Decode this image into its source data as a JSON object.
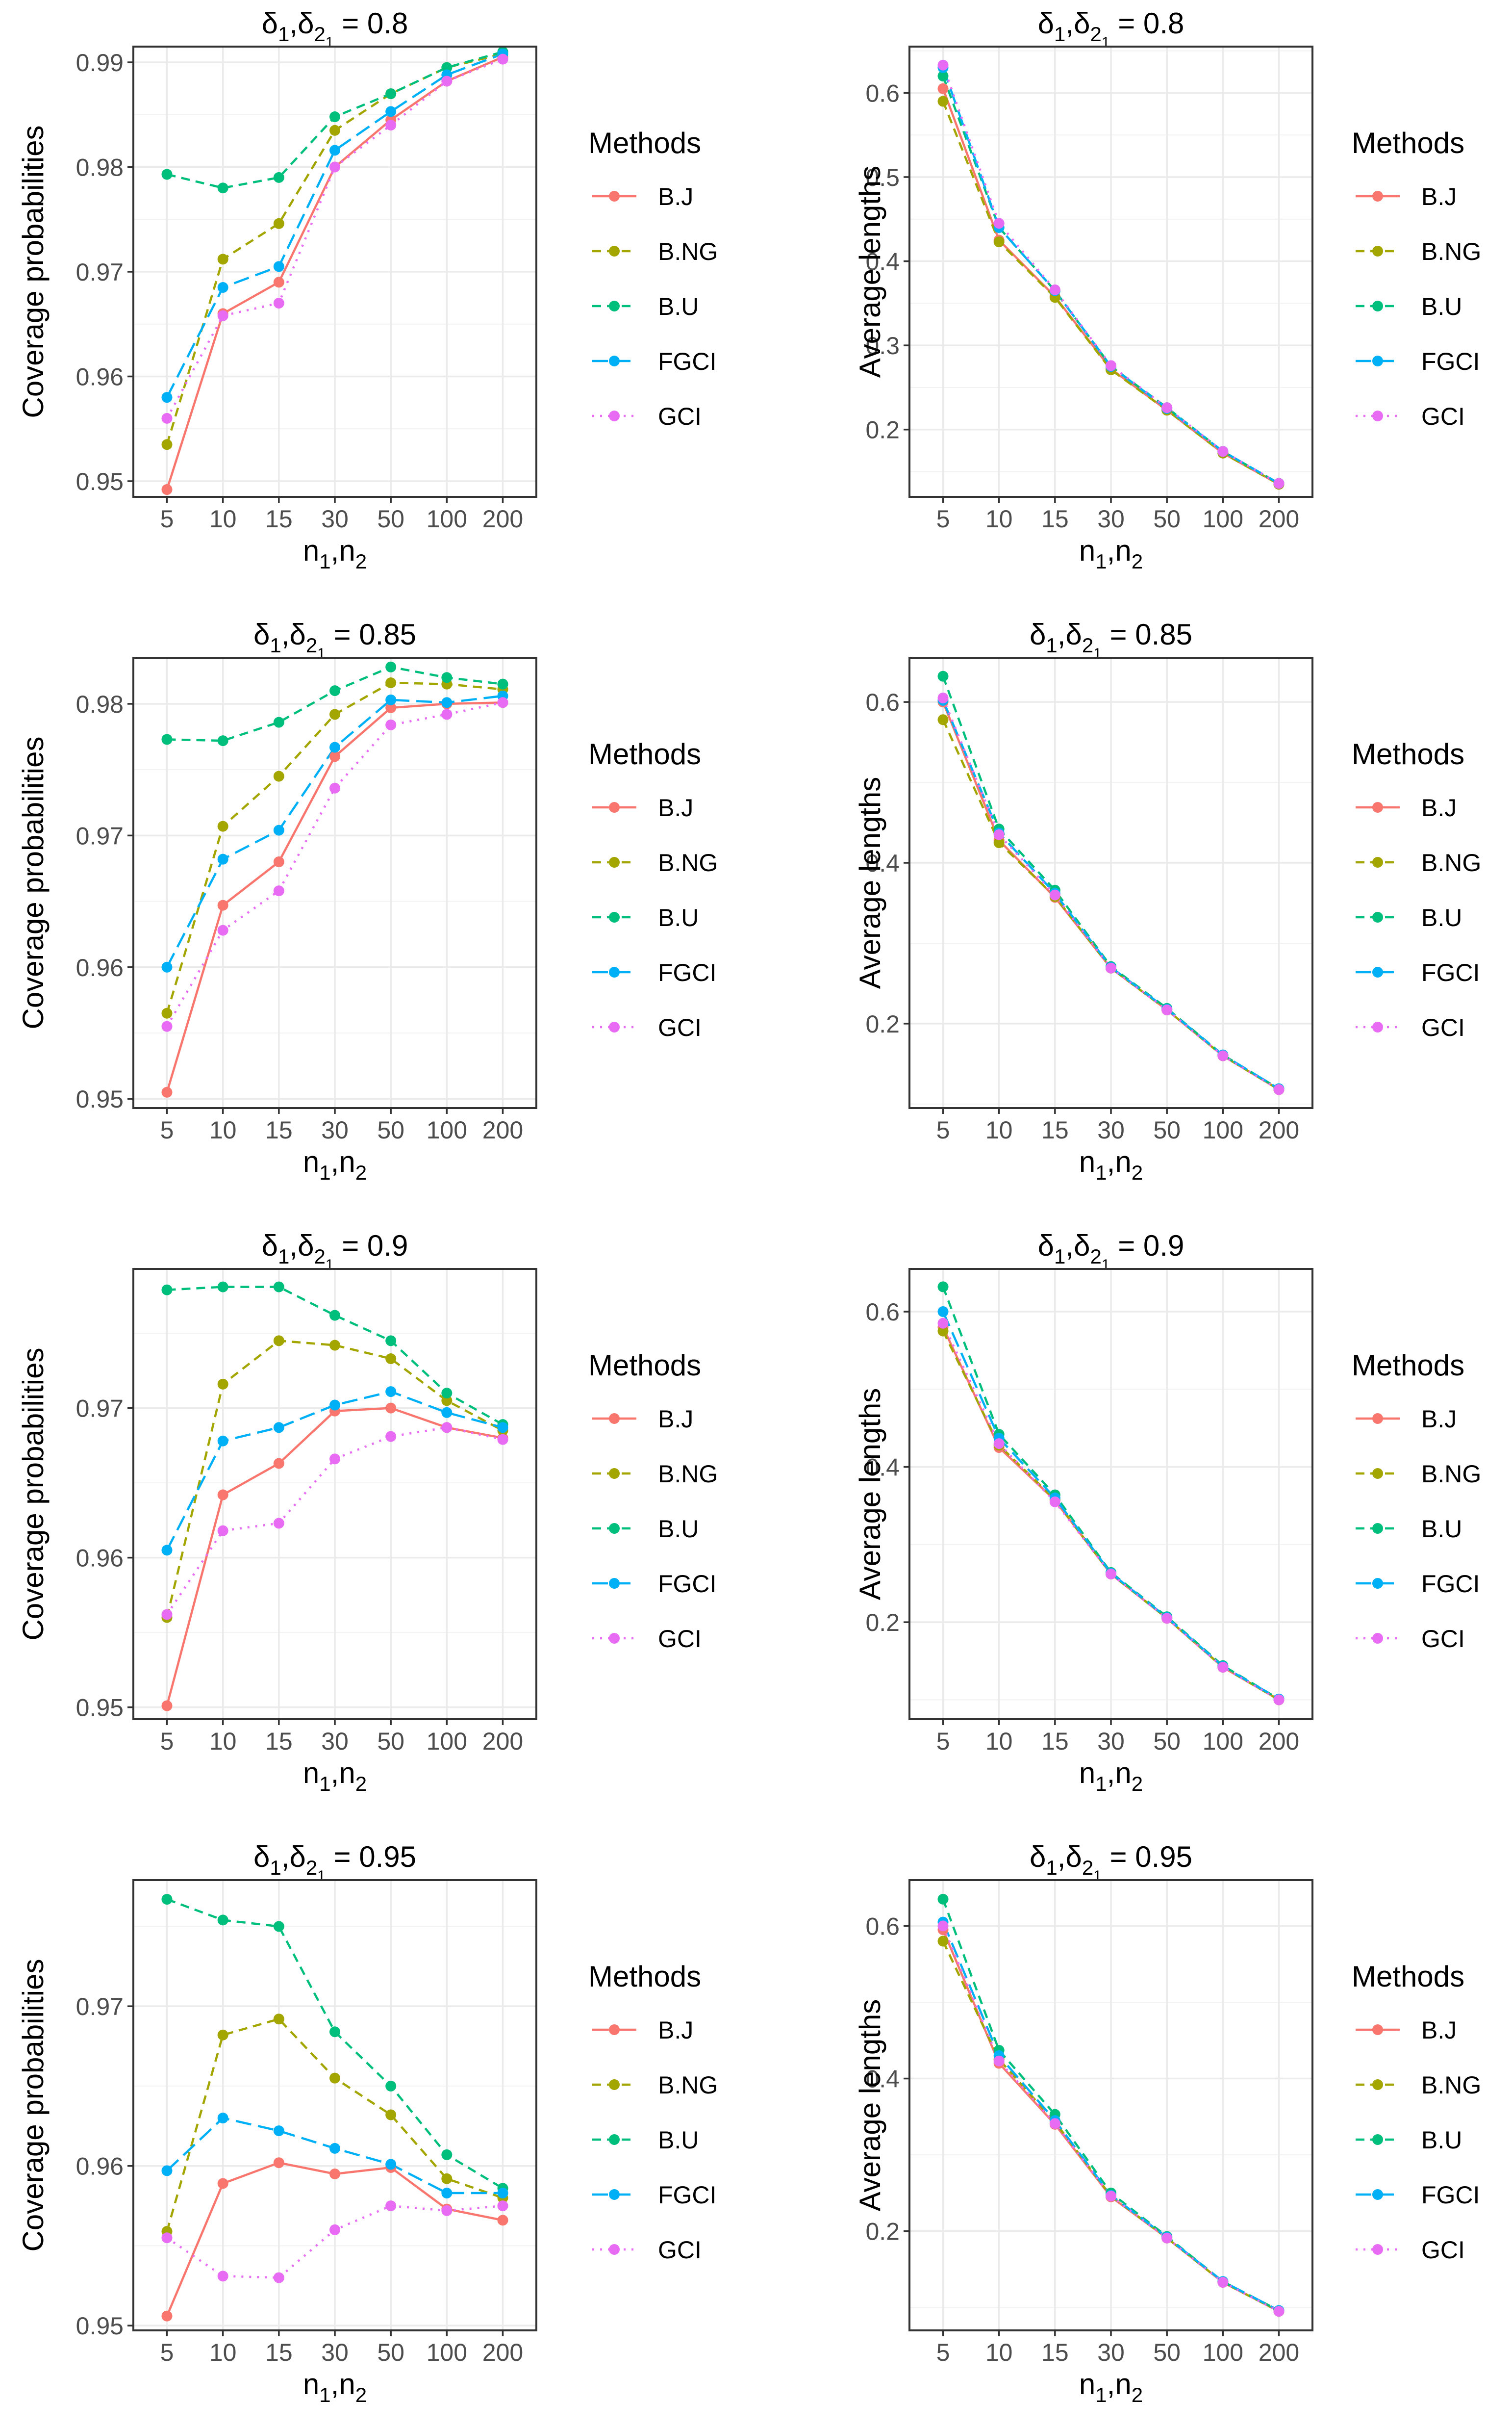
{
  "chart_data": [
    {
      "type": "line",
      "title": {
        "prefix": "δ",
        "s1": "1",
        "s2": "2",
        "s3": "1",
        "value": "0.8"
      },
      "xlabel": {
        "base": "n",
        "s1": "1",
        "s2": "2"
      },
      "ylabel": "Coverage probabilities",
      "x": [
        "5",
        "10",
        "15",
        "30",
        "50",
        "100",
        "200"
      ],
      "ylim": [
        0.9485,
        0.9915
      ],
      "yticks": [
        0.95,
        0.96,
        0.97,
        0.98,
        0.99
      ],
      "ytick_labels": [
        "0.95",
        "0.96",
        "0.97",
        "0.98",
        "0.99"
      ],
      "legend_title": "Methods",
      "series": [
        {
          "name": "B.J",
          "values": [
            0.9492,
            0.966,
            0.969,
            0.98,
            0.9845,
            0.9882,
            0.9905
          ]
        },
        {
          "name": "B.NG",
          "values": [
            0.9535,
            0.9712,
            0.9746,
            0.9835,
            0.987,
            0.9895,
            0.9908
          ]
        },
        {
          "name": "B.U",
          "values": [
            0.9793,
            0.978,
            0.979,
            0.9848,
            0.987,
            0.9895,
            0.991
          ]
        },
        {
          "name": "FGCI",
          "values": [
            0.958,
            0.9685,
            0.9705,
            0.9816,
            0.9853,
            0.9888,
            0.9908
          ]
        },
        {
          "name": "GCI",
          "values": [
            0.956,
            0.9658,
            0.967,
            0.98,
            0.984,
            0.9882,
            0.9903
          ]
        }
      ]
    },
    {
      "type": "line",
      "title": {
        "prefix": "δ",
        "s1": "1",
        "s2": "2",
        "s3": "1",
        "value": "0.8"
      },
      "xlabel": {
        "base": "n",
        "s1": "1",
        "s2": "2"
      },
      "ylabel": "Average lengths",
      "x": [
        "5",
        "10",
        "15",
        "30",
        "50",
        "100",
        "200"
      ],
      "ylim": [
        0.12,
        0.655
      ],
      "yticks": [
        0.2,
        0.3,
        0.4,
        0.5,
        0.6
      ],
      "ytick_labels": [
        "0.2",
        "0.3",
        "0.4",
        "0.5",
        "0.6"
      ],
      "legend_title": "Methods",
      "series": [
        {
          "name": "B.J",
          "values": [
            0.605,
            0.425,
            0.358,
            0.272,
            0.223,
            0.172,
            0.135
          ]
        },
        {
          "name": "B.NG",
          "values": [
            0.59,
            0.423,
            0.357,
            0.271,
            0.223,
            0.172,
            0.135
          ]
        },
        {
          "name": "B.U",
          "values": [
            0.62,
            0.44,
            0.365,
            0.275,
            0.226,
            0.174,
            0.136
          ]
        },
        {
          "name": "FGCI",
          "values": [
            0.63,
            0.44,
            0.365,
            0.275,
            0.225,
            0.174,
            0.136
          ]
        },
        {
          "name": "GCI",
          "values": [
            0.633,
            0.445,
            0.366,
            0.276,
            0.226,
            0.174,
            0.136
          ]
        }
      ]
    },
    {
      "type": "line",
      "title": {
        "prefix": "δ",
        "s1": "1",
        "s2": "2",
        "s3": "1",
        "value": "0.85"
      },
      "xlabel": {
        "base": "n",
        "s1": "1",
        "s2": "2"
      },
      "ylabel": "Coverage probabilities",
      "x": [
        "5",
        "10",
        "15",
        "30",
        "50",
        "100",
        "200"
      ],
      "ylim": [
        0.9493,
        0.9835
      ],
      "yticks": [
        0.95,
        0.96,
        0.97,
        0.98
      ],
      "ytick_labels": [
        "0.95",
        "0.96",
        "0.97",
        "0.98"
      ],
      "legend_title": "Methods",
      "series": [
        {
          "name": "B.J",
          "values": [
            0.9505,
            0.9647,
            0.968,
            0.976,
            0.9797,
            0.98,
            0.9801
          ]
        },
        {
          "name": "B.NG",
          "values": [
            0.9565,
            0.9707,
            0.9745,
            0.9792,
            0.9816,
            0.9815,
            0.9811
          ]
        },
        {
          "name": "B.U",
          "values": [
            0.9773,
            0.9772,
            0.9786,
            0.981,
            0.9828,
            0.982,
            0.9815
          ]
        },
        {
          "name": "FGCI",
          "values": [
            0.96,
            0.9682,
            0.9704,
            0.9767,
            0.9803,
            0.9801,
            0.9806
          ]
        },
        {
          "name": "GCI",
          "values": [
            0.9555,
            0.9628,
            0.9658,
            0.9736,
            0.9784,
            0.9792,
            0.9801
          ]
        }
      ]
    },
    {
      "type": "line",
      "title": {
        "prefix": "δ",
        "s1": "1",
        "s2": "2",
        "s3": "1",
        "value": "0.85"
      },
      "xlabel": {
        "base": "n",
        "s1": "1",
        "s2": "2"
      },
      "ylabel": "Average lengths",
      "x": [
        "5",
        "10",
        "15",
        "30",
        "50",
        "100",
        "200"
      ],
      "ylim": [
        0.095,
        0.655
      ],
      "yticks": [
        0.2,
        0.4,
        0.6
      ],
      "ytick_labels": [
        "0.2",
        "0.4",
        "0.6"
      ],
      "legend_title": "Methods",
      "series": [
        {
          "name": "B.J",
          "values": [
            0.6,
            0.428,
            0.357,
            0.269,
            0.217,
            0.16,
            0.118
          ]
        },
        {
          "name": "B.NG",
          "values": [
            0.578,
            0.425,
            0.358,
            0.269,
            0.217,
            0.16,
            0.118
          ]
        },
        {
          "name": "B.U",
          "values": [
            0.632,
            0.442,
            0.366,
            0.271,
            0.219,
            0.161,
            0.119
          ]
        },
        {
          "name": "FGCI",
          "values": [
            0.602,
            0.437,
            0.362,
            0.27,
            0.218,
            0.161,
            0.119
          ]
        },
        {
          "name": "GCI",
          "values": [
            0.605,
            0.435,
            0.36,
            0.269,
            0.217,
            0.16,
            0.118
          ]
        }
      ]
    },
    {
      "type": "line",
      "title": {
        "prefix": "δ",
        "s1": "1",
        "s2": "2",
        "s3": "1",
        "value": "0.9"
      },
      "xlabel": {
        "base": "n",
        "s1": "1",
        "s2": "2"
      },
      "ylabel": "Coverage probabilities",
      "x": [
        "5",
        "10",
        "15",
        "30",
        "50",
        "100",
        "200"
      ],
      "ylim": [
        0.9492,
        0.9793
      ],
      "yticks": [
        0.95,
        0.96,
        0.97
      ],
      "ytick_labels": [
        "0.95",
        "0.96",
        "0.97"
      ],
      "legend_title": "Methods",
      "series": [
        {
          "name": "B.J",
          "values": [
            0.9501,
            0.9642,
            0.9663,
            0.9698,
            0.97,
            0.9687,
            0.968
          ]
        },
        {
          "name": "B.NG",
          "values": [
            0.956,
            0.9716,
            0.9745,
            0.9742,
            0.9733,
            0.9705,
            0.9685
          ]
        },
        {
          "name": "B.U",
          "values": [
            0.9779,
            0.9781,
            0.9781,
            0.9762,
            0.9745,
            0.971,
            0.9689
          ]
        },
        {
          "name": "FGCI",
          "values": [
            0.9605,
            0.9678,
            0.9687,
            0.9702,
            0.9711,
            0.9697,
            0.9687
          ]
        },
        {
          "name": "GCI",
          "values": [
            0.9562,
            0.9618,
            0.9623,
            0.9666,
            0.9681,
            0.9687,
            0.9679
          ]
        }
      ]
    },
    {
      "type": "line",
      "title": {
        "prefix": "δ",
        "s1": "1",
        "s2": "2",
        "s3": "1",
        "value": "0.9"
      },
      "xlabel": {
        "base": "n",
        "s1": "1",
        "s2": "2"
      },
      "ylabel": "Average lengths",
      "x": [
        "5",
        "10",
        "15",
        "30",
        "50",
        "100",
        "200"
      ],
      "ylim": [
        0.075,
        0.655
      ],
      "yticks": [
        0.2,
        0.4,
        0.6
      ],
      "ytick_labels": [
        "0.2",
        "0.4",
        "0.6"
      ],
      "legend_title": "Methods",
      "series": [
        {
          "name": "B.J",
          "values": [
            0.58,
            0.425,
            0.357,
            0.262,
            0.205,
            0.142,
            0.1
          ]
        },
        {
          "name": "B.NG",
          "values": [
            0.575,
            0.428,
            0.358,
            0.262,
            0.205,
            0.142,
            0.1
          ]
        },
        {
          "name": "B.U",
          "values": [
            0.632,
            0.442,
            0.364,
            0.264,
            0.207,
            0.144,
            0.101
          ]
        },
        {
          "name": "FGCI",
          "values": [
            0.6,
            0.437,
            0.36,
            0.263,
            0.206,
            0.143,
            0.101
          ]
        },
        {
          "name": "GCI",
          "values": [
            0.585,
            0.43,
            0.355,
            0.262,
            0.205,
            0.142,
            0.1
          ]
        }
      ]
    },
    {
      "type": "line",
      "title": {
        "prefix": "δ",
        "s1": "1",
        "s2": "2",
        "s3": "1",
        "value": "0.95"
      },
      "xlabel": {
        "base": "n",
        "s1": "1",
        "s2": "2"
      },
      "ylabel": "Coverage probabilities",
      "x": [
        "5",
        "10",
        "15",
        "30",
        "50",
        "100",
        "200"
      ],
      "ylim": [
        0.9497,
        0.9779
      ],
      "yticks": [
        0.95,
        0.96,
        0.97
      ],
      "ytick_labels": [
        "0.95",
        "0.96",
        "0.97"
      ],
      "legend_title": "Methods",
      "series": [
        {
          "name": "B.J",
          "values": [
            0.9506,
            0.9589,
            0.9602,
            0.9595,
            0.9599,
            0.9573,
            0.9566
          ]
        },
        {
          "name": "B.NG",
          "values": [
            0.9559,
            0.9682,
            0.9692,
            0.9655,
            0.9632,
            0.9592,
            0.958
          ]
        },
        {
          "name": "B.U",
          "values": [
            0.9767,
            0.9754,
            0.975,
            0.9684,
            0.965,
            0.9607,
            0.9586
          ]
        },
        {
          "name": "FGCI",
          "values": [
            0.9597,
            0.963,
            0.9622,
            0.9611,
            0.9601,
            0.9583,
            0.9583
          ]
        },
        {
          "name": "GCI",
          "values": [
            0.9555,
            0.9531,
            0.953,
            0.956,
            0.9575,
            0.9572,
            0.9575
          ]
        }
      ]
    },
    {
      "type": "line",
      "title": {
        "prefix": "δ",
        "s1": "1",
        "s2": "2",
        "s3": "1",
        "value": "0.95"
      },
      "xlabel": {
        "base": "n",
        "s1": "1",
        "s2": "2"
      },
      "ylabel": "Average lengths",
      "x": [
        "5",
        "10",
        "15",
        "30",
        "50",
        "100",
        "200"
      ],
      "ylim": [
        0.07,
        0.66
      ],
      "yticks": [
        0.2,
        0.4,
        0.6
      ],
      "ytick_labels": [
        "0.2",
        "0.4",
        "0.6"
      ],
      "legend_title": "Methods",
      "series": [
        {
          "name": "B.J",
          "values": [
            0.595,
            0.42,
            0.34,
            0.245,
            0.191,
            0.133,
            0.095
          ]
        },
        {
          "name": "B.NG",
          "values": [
            0.58,
            0.425,
            0.343,
            0.246,
            0.191,
            0.133,
            0.095
          ]
        },
        {
          "name": "B.U",
          "values": [
            0.635,
            0.437,
            0.353,
            0.25,
            0.193,
            0.134,
            0.096
          ]
        },
        {
          "name": "FGCI",
          "values": [
            0.605,
            0.43,
            0.345,
            0.247,
            0.192,
            0.134,
            0.096
          ]
        },
        {
          "name": "GCI",
          "values": [
            0.6,
            0.423,
            0.341,
            0.246,
            0.191,
            0.133,
            0.095
          ]
        }
      ]
    }
  ],
  "colors": {
    "B.J": "#F8766D",
    "B.NG": "#A3A500",
    "B.U": "#00BF7D",
    "FGCI": "#00B0F6",
    "GCI": "#E76BF3"
  },
  "dashes": {
    "B.J": "solid",
    "B.NG": "dashed",
    "B.U": "dashed",
    "FGCI": "long-dash",
    "GCI": "dotted"
  }
}
